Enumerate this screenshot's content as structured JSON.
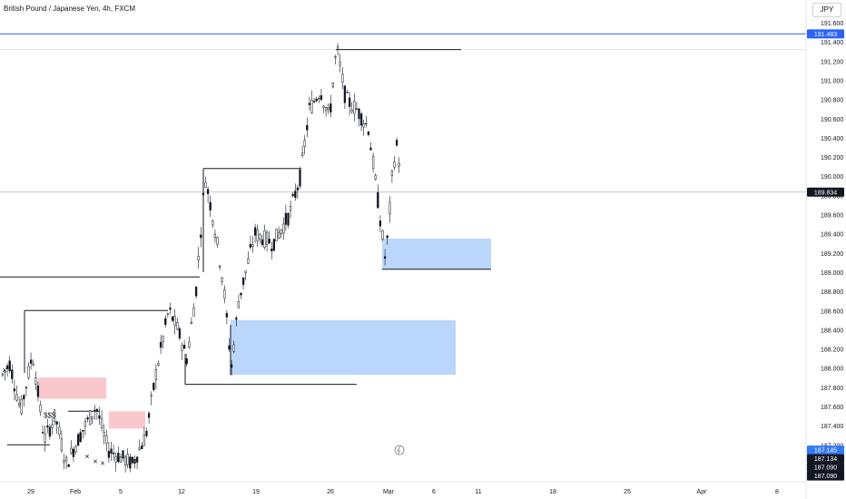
{
  "header": {
    "title": "British Pound / Japanese Yen, 4h, FXCM",
    "unit": "JPY"
  },
  "chart_data": {
    "type": "candlestick",
    "title": "British Pound / Japanese Yen, 4h, FXCM",
    "ylim": [
      187.0,
      191.7
    ],
    "y_ticks": [
      "191.600",
      "191.400",
      "191.200",
      "191.000",
      "190.800",
      "190.600",
      "190.400",
      "190.200",
      "190.000",
      "189.800",
      "189.600",
      "189.400",
      "189.200",
      "189.000",
      "188.800",
      "188.600",
      "188.400",
      "188.200",
      "188.000",
      "187.800",
      "187.600",
      "187.400",
      "187.200"
    ],
    "x_ticks": [
      "29",
      "Feb",
      "5",
      "12",
      "19",
      "26",
      "Mar",
      "6",
      "11",
      "18",
      "25",
      "Apr",
      "8"
    ],
    "price_labels": [
      {
        "value": 191.483,
        "text": "191.483",
        "color": "#2962ff"
      },
      {
        "value": 189.834,
        "text": "189.834",
        "color": "#131722"
      },
      {
        "value": 187.145,
        "text": "187.145",
        "color": "#3179f5"
      },
      {
        "value": 187.134,
        "text": "187.134",
        "color": "#131722"
      },
      {
        "value": 187.09,
        "text": "187.090",
        "color": "#131722"
      },
      {
        "value": 187.09,
        "text": "187.090",
        "color": "#131722"
      }
    ],
    "annotations": [
      "$$$"
    ],
    "colors": {
      "zone_blue": "#bbd6fb",
      "zone_red": "#f9c8cc",
      "candle": "#131722",
      "line_blue": "#2962ff"
    }
  }
}
